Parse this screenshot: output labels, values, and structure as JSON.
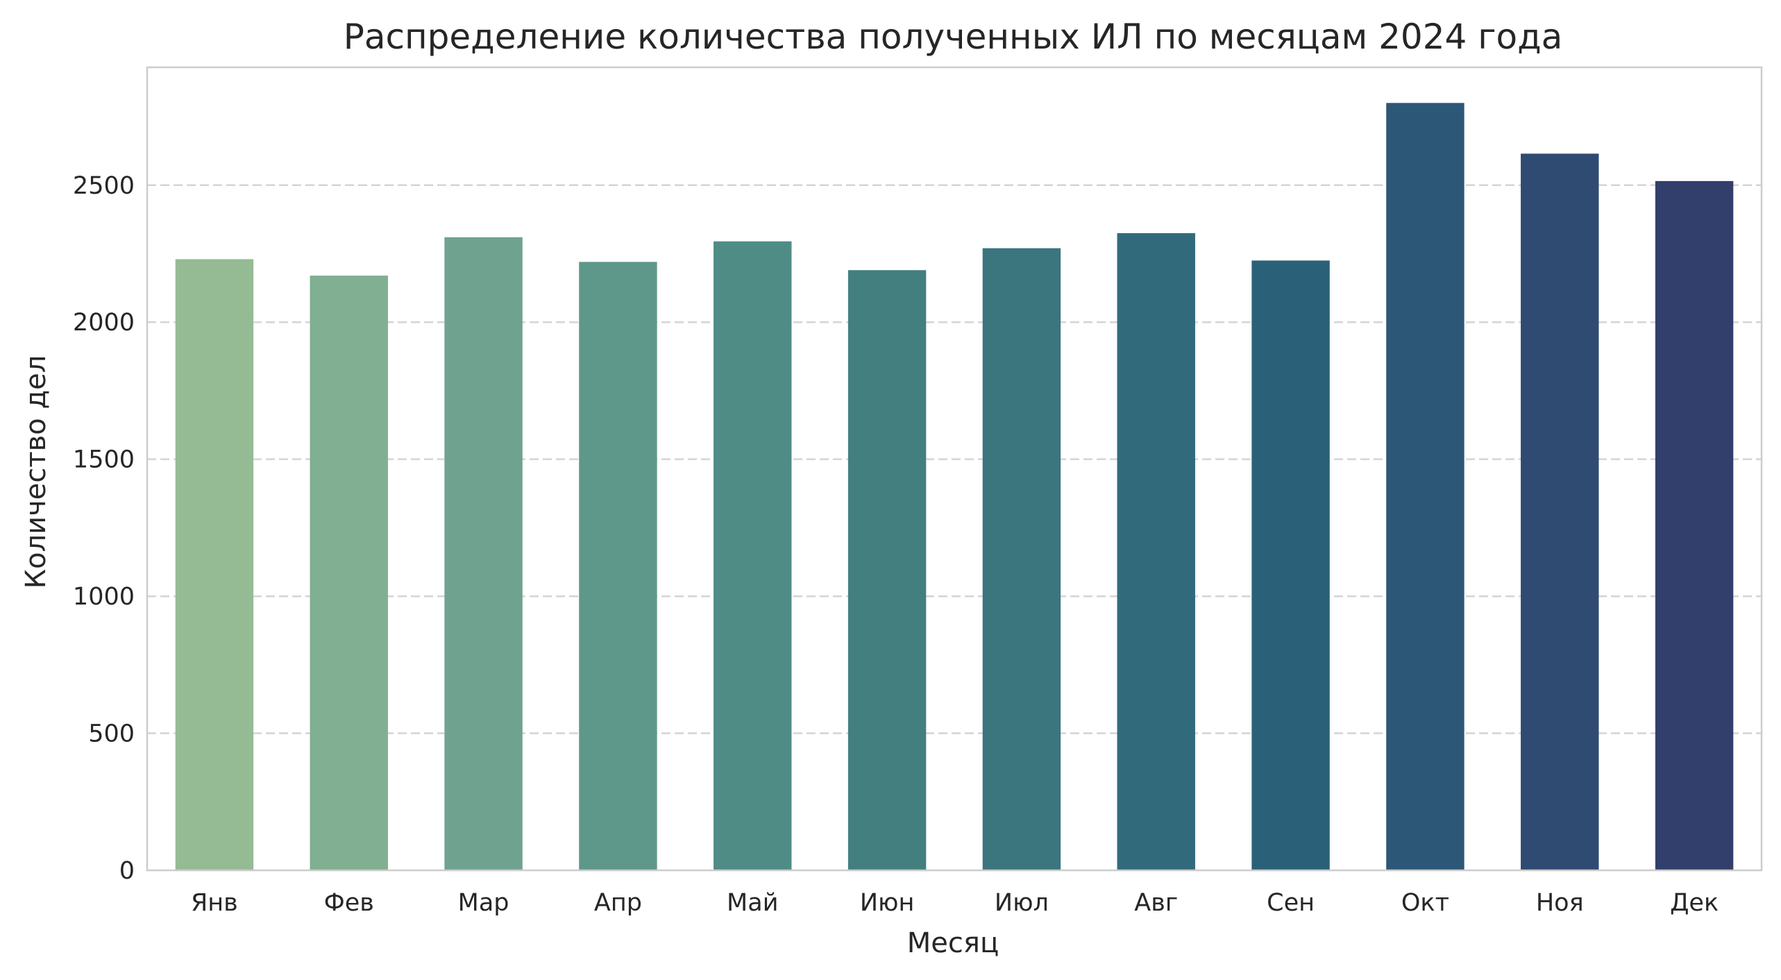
{
  "chart_data": {
    "type": "bar",
    "title": "Распределение количества полученных ИЛ по месяцам 2024 года",
    "xlabel": "Месяц",
    "ylabel": "Количество дел",
    "categories": [
      "Янв",
      "Фев",
      "Мар",
      "Апр",
      "Май",
      "Июн",
      "Июл",
      "Авг",
      "Сен",
      "Окт",
      "Ноя",
      "Дек"
    ],
    "values": [
      2230,
      2170,
      2310,
      2220,
      2295,
      2190,
      2270,
      2325,
      2225,
      2800,
      2615,
      2515
    ],
    "ylim": [
      0,
      2930
    ],
    "yticks": [
      0,
      500,
      1000,
      1500,
      2000,
      2500
    ],
    "grid": "y-dashed",
    "legend": "none",
    "colors": [
      "#95bb94",
      "#80af91",
      "#6fa38f",
      "#5e988a",
      "#508c86",
      "#447f80",
      "#3b757e",
      "#316b7b",
      "#2b6079",
      "#2c5777",
      "#2f4b72",
      "#323f6c"
    ]
  }
}
